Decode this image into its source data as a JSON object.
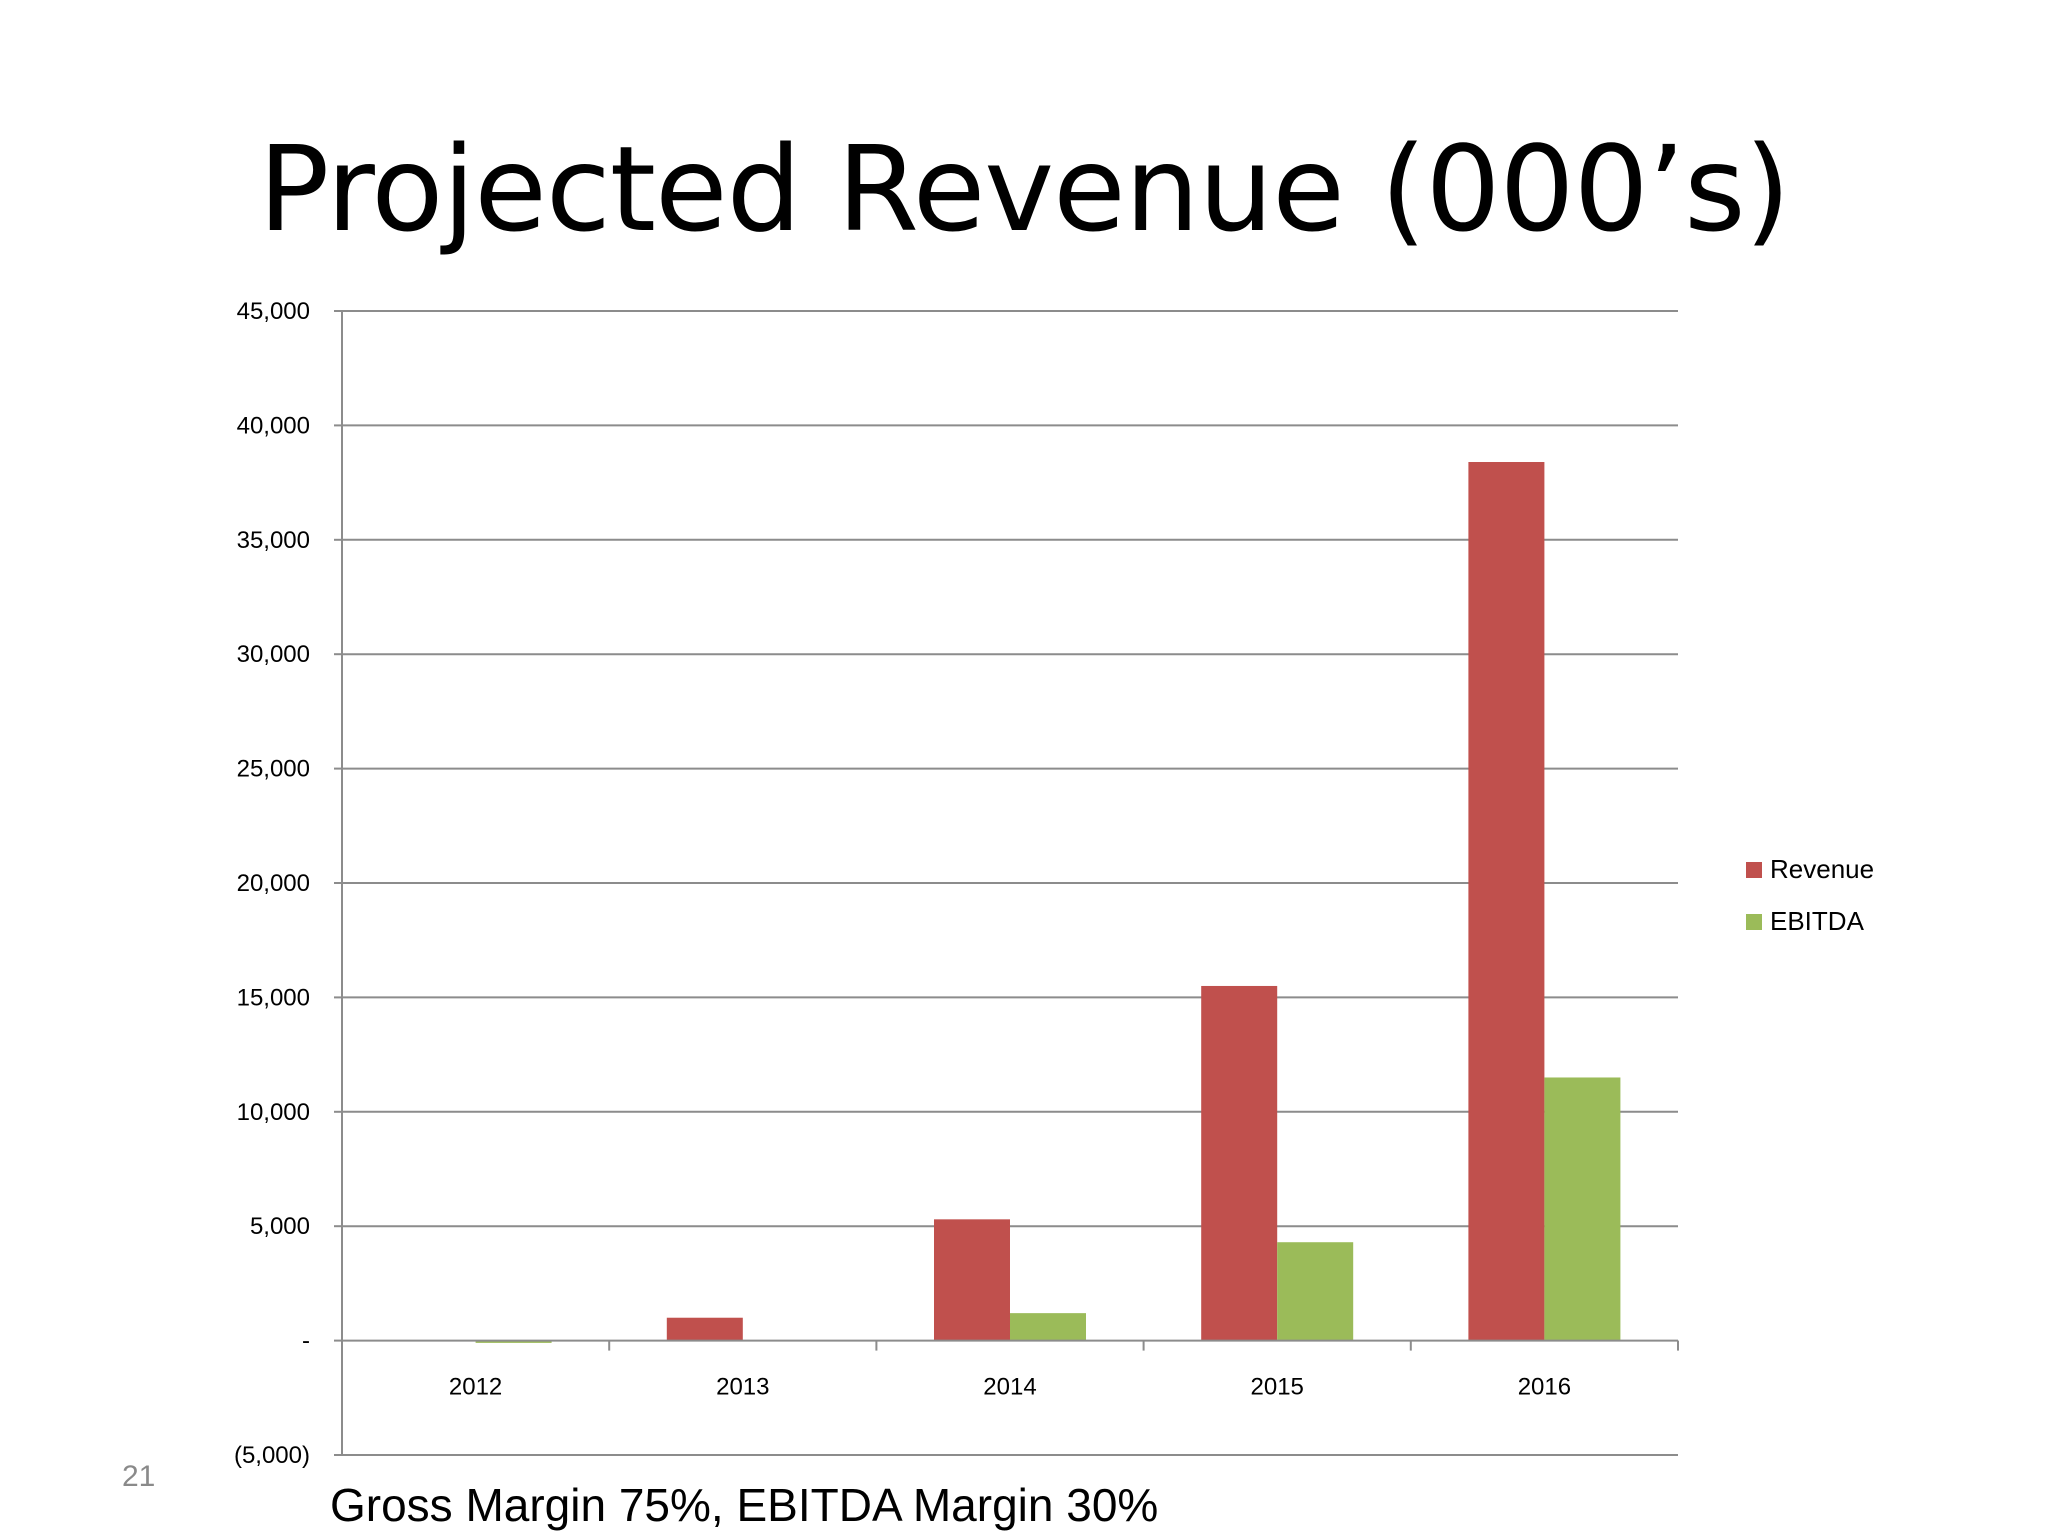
{
  "slide": {
    "title": "Projected Revenue (000’s)",
    "page_number": "21",
    "footer_note": "Gross Margin 75%, EBITDA Margin 30%"
  },
  "colors": {
    "revenue": "#c0504d",
    "ebitda": "#9bbb59",
    "gridline": "#8c8c8c",
    "axis": "#8c8c8c"
  },
  "chart_data": {
    "type": "bar",
    "title": "Projected Revenue (000’s)",
    "categories": [
      "2012",
      "2013",
      "2014",
      "2015",
      "2016"
    ],
    "series": [
      {
        "name": "Revenue",
        "values": [
          0,
          1000,
          5300,
          15500,
          38400
        ]
      },
      {
        "name": "EBITDA",
        "values": [
          -100,
          0,
          1200,
          4300,
          11500
        ]
      }
    ],
    "ylim": [
      -5000,
      45000
    ],
    "y_ticks": [
      {
        "value": 45000,
        "label": "45,000"
      },
      {
        "value": 40000,
        "label": "40,000"
      },
      {
        "value": 35000,
        "label": "35,000"
      },
      {
        "value": 30000,
        "label": "30,000"
      },
      {
        "value": 25000,
        "label": "25,000"
      },
      {
        "value": 20000,
        "label": "20,000"
      },
      {
        "value": 15000,
        "label": "15,000"
      },
      {
        "value": 10000,
        "label": "10,000"
      },
      {
        "value": 5000,
        "label": "5,000"
      },
      {
        "value": 0,
        "label": "-"
      },
      {
        "value": -5000,
        "label": "(5,000)"
      }
    ],
    "xlabel": "",
    "ylabel": "",
    "grid": true,
    "legend_position": "right"
  }
}
